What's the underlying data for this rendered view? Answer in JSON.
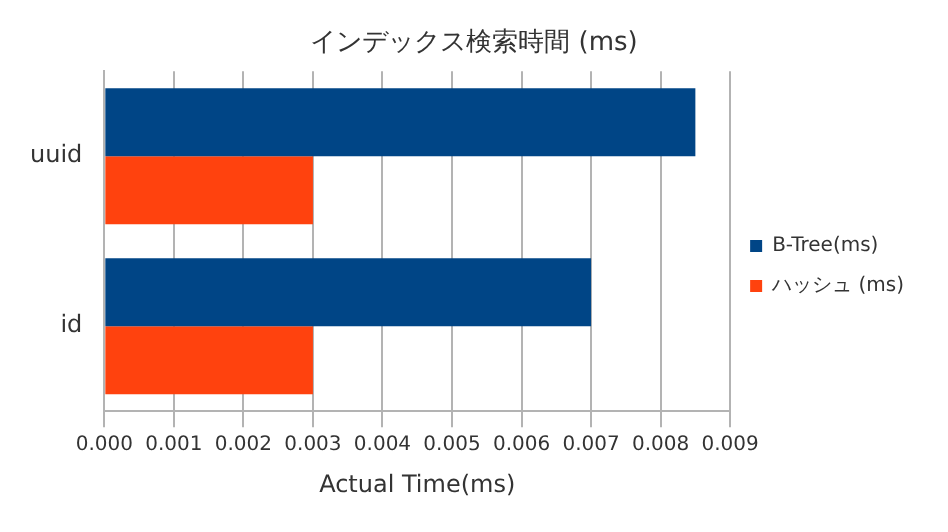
{
  "chart_data": {
    "type": "bar",
    "orientation": "horizontal",
    "title": "インデックス検索時間 (ms)",
    "xlabel": "Actual Time(ms)",
    "categories": [
      "uuid",
      "id"
    ],
    "series": [
      {
        "name": "B-Tree(ms)",
        "color": "#004586",
        "values": [
          0.0085,
          0.007
        ]
      },
      {
        "name": "ハッシュ (ms)",
        "color": "#ff420e",
        "values": [
          0.003,
          0.003
        ]
      }
    ],
    "xlim": [
      0,
      0.009
    ],
    "xticks": [
      {
        "value": 0,
        "label": "0.000"
      },
      {
        "value": 0.001,
        "label": "0.001"
      },
      {
        "value": 0.002,
        "label": "0.002"
      },
      {
        "value": 0.003,
        "label": "0.003"
      },
      {
        "value": 0.004,
        "label": "0.004"
      },
      {
        "value": 0.005,
        "label": "0.005"
      },
      {
        "value": 0.006,
        "label": "0.006"
      },
      {
        "value": 0.007,
        "label": "0.007"
      },
      {
        "value": 0.008,
        "label": "0.008"
      },
      {
        "value": 0.009,
        "label": "0.009"
      }
    ],
    "grid": "x",
    "legend": "right"
  }
}
